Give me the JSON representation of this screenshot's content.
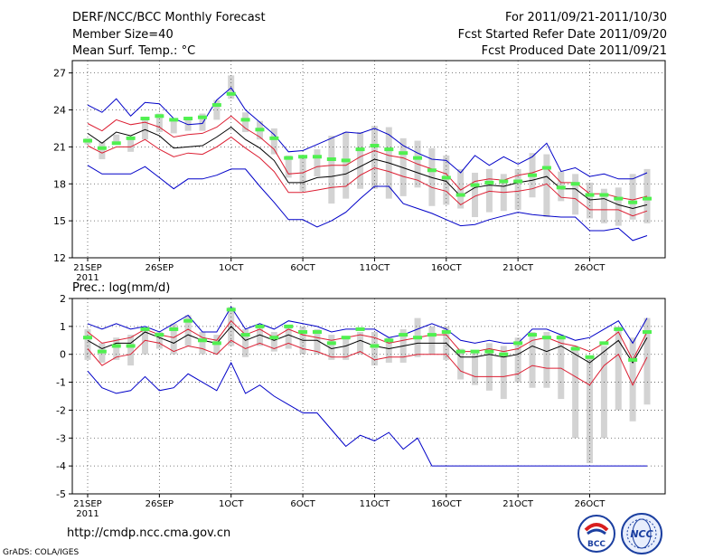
{
  "header": {
    "title": "DERF/NCC/BCC Monthly Forecast",
    "member_size": "Member Size=40",
    "variable": "Mean Surf. Temp.: °C",
    "period": "For 2011/09/21-2011/10/30",
    "fcst_start": "Fcst Started Refer Date 2011/09/20",
    "fcst_produced": "Fcst Produced Date 2011/09/21"
  },
  "footer": {
    "url": "http://cmdp.ncc.cma.gov.cn",
    "grads": "GrADS: COLA/IGES",
    "logo_bcc": "BCC",
    "logo_ncc": "NCC"
  },
  "colors": {
    "box": "#d3d3d3",
    "mean": "#000000",
    "spread": "#dc1e32",
    "extreme": "#0000c8",
    "obs": "#50f050"
  },
  "chart_data": [
    {
      "type": "line",
      "title": "Mean Surf. Temp.: °C",
      "ylim": [
        12,
        28
      ],
      "yticks": [
        12,
        15,
        18,
        21,
        24,
        27
      ],
      "xtick_labels": [
        "21SEP",
        "26SEP",
        "1OCT",
        "6OCT",
        "11OCT",
        "16OCT",
        "21OCT",
        "26OCT"
      ],
      "xtick_days": [
        1,
        6,
        11,
        16,
        21,
        26,
        31,
        36
      ],
      "xsub_label": "2011",
      "days": [
        1,
        2,
        3,
        4,
        5,
        6,
        7,
        8,
        9,
        10,
        11,
        12,
        13,
        14,
        15,
        16,
        17,
        18,
        19,
        20,
        21,
        22,
        23,
        24,
        25,
        26,
        27,
        28,
        29,
        30,
        31,
        32,
        33,
        34,
        35,
        36,
        37,
        38,
        39,
        40
      ],
      "series": [
        {
          "name": "ensemble max",
          "values": [
            24.4,
            23.8,
            24.9,
            23.5,
            24.6,
            24.5,
            23.3,
            22.8,
            22.9,
            24.8,
            25.8,
            24.0,
            23.0,
            22.0,
            20.6,
            20.7,
            21.2,
            21.7,
            22.2,
            22.1,
            22.5,
            22.0,
            21.1,
            20.5,
            20.0,
            19.9,
            18.9,
            20.3,
            19.5,
            20.2,
            19.6,
            20.2,
            21.3,
            19.0,
            19.3,
            18.6,
            18.8,
            18.4,
            18.4,
            18.9
          ]
        },
        {
          "name": "ensemble upper",
          "values": [
            22.9,
            22.3,
            23.2,
            22.8,
            23.0,
            22.6,
            21.8,
            22.0,
            22.1,
            22.6,
            23.5,
            22.5,
            21.8,
            20.8,
            18.8,
            18.9,
            19.4,
            19.5,
            19.5,
            20.2,
            20.7,
            20.3,
            20.1,
            19.6,
            19.2,
            18.8,
            17.5,
            18.2,
            18.4,
            18.3,
            18.7,
            18.9,
            19.3,
            18.1,
            18.1,
            17.2,
            17.2,
            16.9,
            16.7,
            17.0
          ]
        },
        {
          "name": "ensemble mean",
          "values": [
            22.1,
            21.3,
            22.2,
            21.9,
            22.4,
            21.9,
            20.9,
            21.0,
            21.1,
            21.8,
            22.6,
            21.6,
            20.9,
            19.9,
            18.1,
            18.1,
            18.5,
            18.6,
            18.8,
            19.4,
            20.0,
            19.7,
            19.3,
            18.9,
            18.5,
            18.2,
            17.0,
            17.7,
            17.9,
            17.8,
            18.1,
            18.3,
            18.6,
            17.6,
            17.6,
            16.7,
            16.8,
            16.3,
            16.0,
            16.3
          ]
        },
        {
          "name": "ensemble lower",
          "values": [
            21.1,
            20.5,
            21.0,
            21.0,
            21.6,
            20.8,
            20.2,
            20.5,
            20.4,
            21.0,
            21.8,
            20.9,
            20.1,
            19.0,
            17.3,
            17.3,
            17.5,
            17.7,
            17.8,
            18.7,
            19.3,
            19.0,
            18.6,
            18.3,
            17.7,
            17.4,
            16.3,
            17.0,
            17.4,
            17.3,
            17.4,
            17.6,
            18.0,
            16.9,
            16.8,
            15.9,
            15.9,
            15.9,
            15.4,
            15.8
          ]
        },
        {
          "name": "ensemble min",
          "values": [
            19.5,
            18.8,
            18.8,
            18.8,
            19.4,
            18.5,
            17.6,
            18.4,
            18.4,
            18.7,
            19.2,
            19.2,
            17.8,
            16.5,
            15.1,
            15.1,
            14.5,
            15.0,
            15.7,
            16.8,
            17.8,
            17.8,
            16.4,
            16.0,
            15.6,
            15.1,
            14.6,
            14.7,
            15.1,
            15.4,
            15.7,
            15.5,
            15.4,
            15.3,
            15.3,
            14.2,
            14.2,
            14.4,
            13.4,
            13.8
          ]
        }
      ],
      "box_ranges": [
        [
          21.2,
          21.7
        ],
        [
          20.0,
          21.4
        ],
        [
          21.2,
          22.0
        ],
        [
          20.6,
          21.7
        ],
        [
          21.6,
          23.4
        ],
        [
          22.2,
          23.7
        ],
        [
          22.1,
          23.3
        ],
        [
          22.3,
          23.4
        ],
        [
          22.3,
          23.7
        ],
        [
          23.2,
          24.8
        ],
        [
          24.9,
          26.8
        ],
        [
          22.2,
          23.8
        ],
        [
          21.6,
          23.1
        ],
        [
          20.4,
          22.5
        ],
        [
          18.5,
          20.3
        ],
        [
          17.4,
          20.3
        ],
        [
          18.6,
          20.8
        ],
        [
          16.4,
          21.9
        ],
        [
          16.8,
          22.2
        ],
        [
          17.6,
          22.2
        ],
        [
          17.6,
          22.7
        ],
        [
          16.8,
          22.6
        ],
        [
          17.0,
          21.7
        ],
        [
          17.7,
          21.5
        ],
        [
          16.2,
          20.9
        ],
        [
          16.3,
          20.3
        ],
        [
          16.0,
          19.2
        ],
        [
          15.3,
          18.9
        ],
        [
          15.7,
          19.2
        ],
        [
          15.8,
          18.8
        ],
        [
          15.9,
          19.2
        ],
        [
          16.9,
          20.5
        ],
        [
          15.3,
          20.4
        ],
        [
          16.6,
          19.0
        ],
        [
          15.5,
          18.8
        ],
        [
          15.2,
          18.1
        ],
        [
          14.8,
          17.6
        ],
        [
          14.6,
          17.7
        ],
        [
          15.1,
          18.8
        ],
        [
          14.8,
          19.2
        ]
      ],
      "obs": [
        21.5,
        20.9,
        21.3,
        21.7,
        23.3,
        23.5,
        23.2,
        23.3,
        23.4,
        24.4,
        25.3,
        23.2,
        22.4,
        21.7,
        20.1,
        20.2,
        20.2,
        20.0,
        19.9,
        20.8,
        21.1,
        20.8,
        20.5,
        20.1,
        19.1,
        18.5,
        17.1,
        17.9,
        18.1,
        18.2,
        18.2,
        18.7,
        19.3,
        17.7,
        18.0,
        17.1,
        17.1,
        16.8,
        16.5,
        16.8
      ]
    },
    {
      "type": "line",
      "title": "Prec.: log(mm/d)",
      "ylim": [
        -5,
        2
      ],
      "yticks": [
        -5,
        -4,
        -3,
        -2,
        -1,
        0,
        1,
        2
      ],
      "xtick_labels": [
        "21SEP",
        "26SEP",
        "1OCT",
        "6OCT",
        "11OCT",
        "16OCT",
        "21OCT",
        "26OCT"
      ],
      "xtick_days": [
        1,
        6,
        11,
        16,
        21,
        26,
        31,
        36
      ],
      "xsub_label": "2011",
      "days": [
        1,
        2,
        3,
        4,
        5,
        6,
        7,
        8,
        9,
        10,
        11,
        12,
        13,
        14,
        15,
        16,
        17,
        18,
        19,
        20,
        21,
        22,
        23,
        24,
        25,
        26,
        27,
        28,
        29,
        30,
        31,
        32,
        33,
        34,
        35,
        36,
        37,
        38,
        39,
        40
      ],
      "series": [
        {
          "name": "ensemble max",
          "values": [
            1.1,
            0.9,
            1.1,
            0.9,
            1.0,
            0.8,
            1.1,
            1.4,
            0.8,
            0.8,
            1.7,
            0.9,
            1.1,
            0.9,
            1.2,
            1.1,
            1.0,
            0.8,
            0.9,
            0.9,
            0.9,
            0.6,
            0.7,
            0.9,
            1.1,
            0.9,
            0.5,
            0.4,
            0.5,
            0.4,
            0.4,
            0.9,
            0.9,
            0.7,
            0.5,
            0.6,
            0.9,
            1.2,
            0.4,
            1.3
          ]
        },
        {
          "name": "ensemble upper",
          "values": [
            0.8,
            0.4,
            0.5,
            0.6,
            0.9,
            0.7,
            0.6,
            0.9,
            0.6,
            0.5,
            1.2,
            0.7,
            0.9,
            0.6,
            0.9,
            0.7,
            0.6,
            0.5,
            0.6,
            0.7,
            0.6,
            0.4,
            0.5,
            0.6,
            0.7,
            0.7,
            0.1,
            0.1,
            0.2,
            0.1,
            0.2,
            0.5,
            0.6,
            0.4,
            0.3,
            0.1,
            0.4,
            0.8,
            -0.2,
            0.8
          ]
        },
        {
          "name": "ensemble mean",
          "values": [
            0.5,
            0.2,
            0.4,
            0.4,
            0.8,
            0.6,
            0.4,
            0.7,
            0.5,
            0.4,
            1.0,
            0.5,
            0.7,
            0.5,
            0.7,
            0.5,
            0.5,
            0.2,
            0.3,
            0.5,
            0.3,
            0.2,
            0.3,
            0.4,
            0.4,
            0.4,
            -0.1,
            -0.1,
            0.0,
            -0.1,
            0.0,
            0.3,
            0.1,
            0.3,
            0.0,
            -0.3,
            0.1,
            0.5,
            -0.3,
            0.6
          ]
        },
        {
          "name": "ensemble lower",
          "values": [
            0.2,
            -0.4,
            -0.1,
            0.0,
            0.5,
            0.4,
            0.1,
            0.3,
            0.2,
            0.0,
            0.5,
            0.2,
            0.4,
            0.2,
            0.4,
            0.2,
            0.1,
            -0.1,
            -0.1,
            0.1,
            -0.2,
            -0.1,
            -0.1,
            0.0,
            0.0,
            0.0,
            -0.6,
            -0.8,
            -0.8,
            -0.8,
            -0.7,
            -0.4,
            -0.5,
            -0.5,
            -0.8,
            -1.1,
            -0.4,
            0.0,
            -1.1,
            -0.1
          ]
        },
        {
          "name": "ensemble min",
          "values": [
            -0.6,
            -1.2,
            -1.4,
            -1.3,
            -0.8,
            -1.3,
            -1.2,
            -0.7,
            -1.0,
            -1.3,
            -0.3,
            -1.4,
            -1.1,
            -1.5,
            -1.8,
            -2.1,
            -2.1,
            -2.7,
            -3.3,
            -2.9,
            -3.1,
            -2.8,
            -3.4,
            -3.0,
            -4.0,
            -4.0,
            -4.0,
            -4.0,
            -4.0,
            -4.0,
            -4.0,
            -4.0,
            -4.0,
            -4.0,
            -4.0,
            -4.0,
            -4.0,
            -4.0,
            -4.0,
            -4.0
          ]
        }
      ],
      "box_ranges": [
        [
          -0.2,
          0.9
        ],
        [
          -0.3,
          0.4
        ],
        [
          -0.2,
          0.6
        ],
        [
          -0.4,
          0.7
        ],
        [
          0.0,
          0.9
        ],
        [
          0.2,
          0.8
        ],
        [
          0.0,
          1.1
        ],
        [
          0.3,
          1.4
        ],
        [
          0.0,
          0.8
        ],
        [
          0.0,
          0.7
        ],
        [
          0.3,
          1.7
        ],
        [
          -0.1,
          0.9
        ],
        [
          0.3,
          1.0
        ],
        [
          0.1,
          0.8
        ],
        [
          0.2,
          1.0
        ],
        [
          0.0,
          1.0
        ],
        [
          0.0,
          0.9
        ],
        [
          -0.2,
          0.7
        ],
        [
          -0.2,
          0.6
        ],
        [
          0.0,
          0.8
        ],
        [
          -0.4,
          0.8
        ],
        [
          -0.3,
          0.6
        ],
        [
          -0.3,
          0.9
        ],
        [
          -0.1,
          1.3
        ],
        [
          0.0,
          1.0
        ],
        [
          -0.2,
          1.0
        ],
        [
          -0.9,
          0.2
        ],
        [
          -1.1,
          0.1
        ],
        [
          -1.3,
          0.4
        ],
        [
          -1.6,
          0.3
        ],
        [
          -1.0,
          0.6
        ],
        [
          -1.2,
          0.8
        ],
        [
          -1.2,
          0.8
        ],
        [
          -1.6,
          0.7
        ],
        [
          -3.0,
          0.3
        ],
        [
          -3.9,
          -0.1
        ],
        [
          -3.0,
          0.3
        ],
        [
          -2.0,
          1.0
        ],
        [
          -2.4,
          0.6
        ],
        [
          -1.8,
          1.3
        ]
      ],
      "obs": [
        0.6,
        0.1,
        0.3,
        0.3,
        0.9,
        0.7,
        0.9,
        1.2,
        0.5,
        0.4,
        1.6,
        0.7,
        1.0,
        0.6,
        1.0,
        0.8,
        0.8,
        0.4,
        0.6,
        0.9,
        0.3,
        0.5,
        0.7,
        0.6,
        0.7,
        0.8,
        0.1,
        0.1,
        0.1,
        0.0,
        0.4,
        0.7,
        0.6,
        0.6,
        0.2,
        -0.1,
        0.4,
        0.9,
        -0.2,
        0.8
      ]
    }
  ]
}
